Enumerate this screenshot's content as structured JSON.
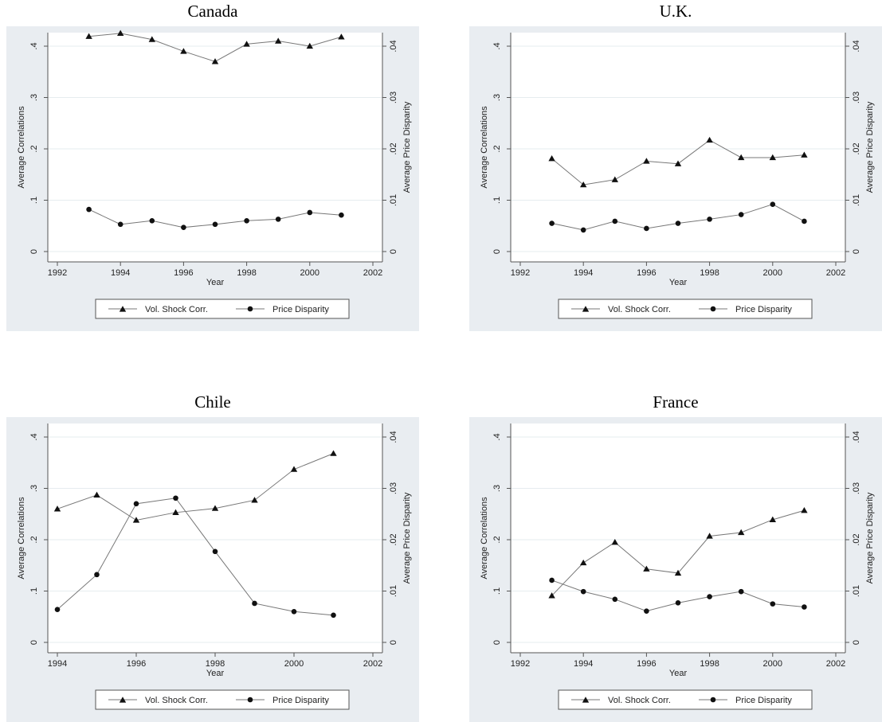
{
  "chart_data": [
    {
      "type": "line",
      "title": "Canada",
      "xlabel": "Year",
      "ylabel": "Average Correlations",
      "y2label": "Average Price Disparity",
      "xlim": [
        1992,
        2002
      ],
      "ylim": [
        0,
        0.4
      ],
      "y2lim": [
        0,
        0.04
      ],
      "xticks": [
        "1992",
        "1994",
        "1996",
        "1998",
        "2000",
        "2002"
      ],
      "yticks": [
        "0",
        ".1",
        ".2",
        ".3",
        ".4"
      ],
      "y2ticks": [
        "0",
        ".01",
        ".02",
        ".03",
        ".04"
      ],
      "grid": "horizontal",
      "legend": "bottom",
      "series": [
        {
          "name": "Vol. Shock Corr.",
          "marker": "triangle",
          "axis": "left",
          "x": [
            1993,
            1994,
            1995,
            1996,
            1997,
            1998,
            1999,
            2000,
            2001
          ],
          "values": [
            0.419,
            0.425,
            0.413,
            0.39,
            0.37,
            0.404,
            0.41,
            0.4,
            0.418
          ]
        },
        {
          "name": "Price Disparity",
          "marker": "circle",
          "axis": "right",
          "x": [
            1993,
            1994,
            1995,
            1996,
            1997,
            1998,
            1999,
            2000,
            2001
          ],
          "values": [
            0.0082,
            0.0053,
            0.006,
            0.0047,
            0.0053,
            0.006,
            0.0063,
            0.0076,
            0.0071
          ]
        }
      ]
    },
    {
      "type": "line",
      "title": "U.K.",
      "xlabel": "Year",
      "ylabel": "Average Correlations",
      "y2label": "Average Price Disparity",
      "xlim": [
        1992,
        2002
      ],
      "ylim": [
        0,
        0.4
      ],
      "y2lim": [
        0,
        0.04
      ],
      "xticks": [
        "1992",
        "1994",
        "1996",
        "1998",
        "2000",
        "2002"
      ],
      "yticks": [
        "0",
        ".1",
        ".2",
        ".3",
        ".4"
      ],
      "y2ticks": [
        "0",
        ".01",
        ".02",
        ".03",
        ".04"
      ],
      "grid": "horizontal",
      "legend": "bottom",
      "series": [
        {
          "name": "Vol. Shock Corr.",
          "marker": "triangle",
          "axis": "left",
          "x": [
            1993,
            1994,
            1995,
            1996,
            1997,
            1998,
            1999,
            2000,
            2001
          ],
          "values": [
            0.181,
            0.13,
            0.14,
            0.176,
            0.171,
            0.217,
            0.183,
            0.183,
            0.188
          ]
        },
        {
          "name": "Price Disparity",
          "marker": "circle",
          "axis": "right",
          "x": [
            1993,
            1994,
            1995,
            1996,
            1997,
            1998,
            1999,
            2000,
            2001
          ],
          "values": [
            0.0055,
            0.0042,
            0.0059,
            0.0045,
            0.0055,
            0.0063,
            0.0072,
            0.0092,
            0.0059
          ]
        }
      ]
    },
    {
      "type": "line",
      "title": "Chile",
      "xlabel": "Year",
      "ylabel": "Average Correlations",
      "y2label": "Average Price Disparity",
      "xlim": [
        1994,
        2002
      ],
      "ylim": [
        0,
        0.4
      ],
      "y2lim": [
        0,
        0.04
      ],
      "xticks": [
        "1994",
        "1996",
        "1998",
        "2000",
        "2002"
      ],
      "yticks": [
        "0",
        ".1",
        ".2",
        ".3",
        ".4"
      ],
      "y2ticks": [
        "0",
        ".01",
        ".02",
        ".03",
        ".04"
      ],
      "grid": "horizontal",
      "legend": "bottom",
      "series": [
        {
          "name": "Vol. Shock Corr.",
          "marker": "triangle",
          "axis": "left",
          "x": [
            1994,
            1995,
            1996,
            1997,
            1998,
            1999,
            2000,
            2001
          ],
          "values": [
            0.26,
            0.287,
            0.238,
            0.253,
            0.261,
            0.277,
            0.337,
            0.368
          ]
        },
        {
          "name": "Price Disparity",
          "marker": "circle",
          "axis": "right",
          "x": [
            1994,
            1995,
            1996,
            1997,
            1998,
            1999,
            2000,
            2001
          ],
          "values": [
            0.0064,
            0.0132,
            0.027,
            0.0281,
            0.0177,
            0.0076,
            0.006,
            0.0053
          ]
        }
      ]
    },
    {
      "type": "line",
      "title": "France",
      "xlabel": "Year",
      "ylabel": "Average Correlations",
      "y2label": "Average Price Disparity",
      "xlim": [
        1992,
        2002
      ],
      "ylim": [
        0,
        0.4
      ],
      "y2lim": [
        0,
        0.04
      ],
      "xticks": [
        "1992",
        "1994",
        "1996",
        "1998",
        "2000",
        "2002"
      ],
      "yticks": [
        "0",
        ".1",
        ".2",
        ".3",
        ".4"
      ],
      "y2ticks": [
        "0",
        ".01",
        ".02",
        ".03",
        ".04"
      ],
      "grid": "horizontal",
      "legend": "bottom",
      "series": [
        {
          "name": "Vol. Shock Corr.",
          "marker": "triangle",
          "axis": "left",
          "x": [
            1993,
            1994,
            1995,
            1996,
            1997,
            1998,
            1999,
            2000,
            2001
          ],
          "values": [
            0.091,
            0.155,
            0.195,
            0.143,
            0.135,
            0.207,
            0.214,
            0.239,
            0.257
          ]
        },
        {
          "name": "Price Disparity",
          "marker": "circle",
          "axis": "right",
          "x": [
            1993,
            1994,
            1995,
            1996,
            1997,
            1998,
            1999,
            2000,
            2001
          ],
          "values": [
            0.0121,
            0.0099,
            0.0084,
            0.0061,
            0.0077,
            0.0089,
            0.0099,
            0.0075,
            0.0069
          ]
        }
      ]
    }
  ]
}
